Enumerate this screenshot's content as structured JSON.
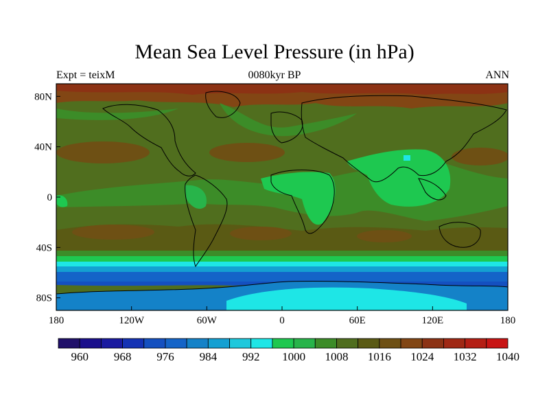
{
  "title": "Mean Sea Level Pressure (in hPa)",
  "subtitle": "0080kyr BP",
  "left_label": "Expt = teixM",
  "right_label": "ANN",
  "map": {
    "lon_range": [
      -180,
      180
    ],
    "lat_range": [
      -90,
      90
    ],
    "x_ticks": [
      "180",
      "120W",
      "60W",
      "0",
      "60E",
      "120E",
      "180"
    ],
    "y_ticks": [
      "80N",
      "40N",
      "0",
      "40S",
      "80S"
    ]
  },
  "colorbar": {
    "colors": [
      "#20106a",
      "#1a0f8c",
      "#1a1aa0",
      "#1432b4",
      "#1450c0",
      "#1464c8",
      "#1482c8",
      "#14a0d2",
      "#1ec8dc",
      "#1ee6e6",
      "#1ec850",
      "#28b44a",
      "#3c8c28",
      "#506e1e",
      "#5a5a14",
      "#6e5014",
      "#824614",
      "#8c3214",
      "#a02814",
      "#b41e14",
      "#c81414"
    ],
    "labels": [
      "960",
      "968",
      "976",
      "984",
      "992",
      "1000",
      "1008",
      "1016",
      "1024",
      "1032",
      "1040"
    ]
  }
}
